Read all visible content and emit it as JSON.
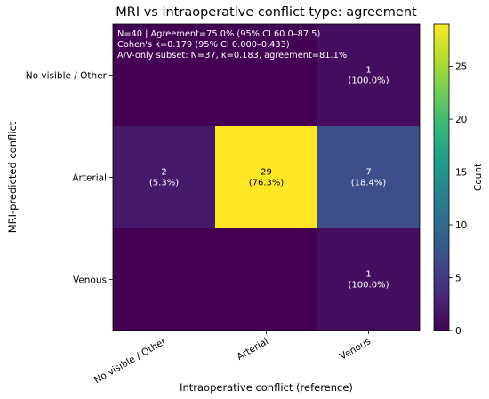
{
  "chart_data": {
    "type": "heatmap",
    "title": "MRI vs intraoperative conflict type: agreement",
    "xlabel": "Intraoperative conflict (reference)",
    "ylabel": "MRI-predicted conflict",
    "x_categories": [
      "No visible / Other",
      "Arterial",
      "Venous"
    ],
    "y_categories": [
      "No visible / Other",
      "Arterial",
      "Venous"
    ],
    "values": [
      [
        0,
        0,
        1
      ],
      [
        2,
        29,
        7
      ],
      [
        0,
        0,
        1
      ]
    ],
    "cell_labels": [
      [
        null,
        null,
        {
          "count": "1",
          "pct": "(100.0%)"
        }
      ],
      [
        {
          "count": "2",
          "pct": "(5.3%)"
        },
        {
          "count": "29",
          "pct": "(76.3%)"
        },
        {
          "count": "7",
          "pct": "(18.4%)"
        }
      ],
      [
        null,
        null,
        {
          "count": "1",
          "pct": "(100.0%)"
        }
      ]
    ],
    "annotation_lines": [
      "N=40 | Agreement=75.0% (95% CI 60.0–87.5)",
      "Cohen's κ=0.179 (95% CI 0.000–0.433)",
      "A/V-only subset: N=37, κ=0.183, agreement=81.1%"
    ],
    "colorbar": {
      "label": "Count",
      "range": [
        0,
        29
      ],
      "ticks": [
        "0",
        "5",
        "10",
        "15",
        "20",
        "25"
      ],
      "colormap": "viridis"
    }
  }
}
